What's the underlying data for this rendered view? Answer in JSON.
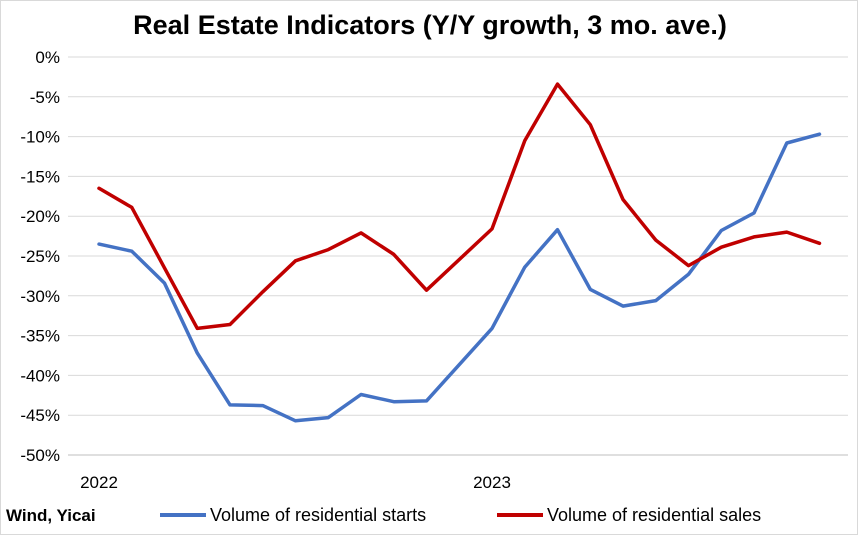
{
  "chart_data": {
    "type": "line",
    "title": "Real Estate Indicators (Y/Y growth, 3 mo. ave.)",
    "xlabel": "",
    "ylabel": "",
    "ylim": [
      -50,
      0
    ],
    "y_ticks": [
      "0%",
      "-5%",
      "-10%",
      "-15%",
      "-20%",
      "-25%",
      "-30%",
      "-35%",
      "-40%",
      "-45%",
      "-50%"
    ],
    "x_tick_labels": [
      {
        "label": "2022",
        "index": 0
      },
      {
        "label": "2023",
        "index": 12
      }
    ],
    "grid": true,
    "legend_position": "bottom",
    "x": [
      "2022-01",
      "2022-02",
      "2022-03",
      "2022-04",
      "2022-05",
      "2022-06",
      "2022-07",
      "2022-08",
      "2022-09",
      "2022-10",
      "2022-11",
      "2022-12",
      "2023-01",
      "2023-02",
      "2023-03",
      "2023-04",
      "2023-05",
      "2023-06",
      "2023-07",
      "2023-08",
      "2023-09",
      "2023-10",
      "2023-11"
    ],
    "series": [
      {
        "name": "Volume of residential starts",
        "color": "#4472c4",
        "values": [
          -23.5,
          -24.4,
          -28.4,
          -37.2,
          -43.7,
          -43.8,
          -45.7,
          -45.3,
          -42.4,
          -43.3,
          -43.2,
          null,
          -34.1,
          -26.4,
          -21.7,
          -29.2,
          -31.3,
          -30.6,
          -27.3,
          -21.8,
          -19.6,
          -10.8,
          -9.7
        ]
      },
      {
        "name": "Volume of residential sales",
        "color": "#c00000",
        "values": [
          -16.5,
          -18.9,
          -26.5,
          -34.1,
          -33.6,
          -29.5,
          -25.6,
          -24.2,
          -22.1,
          -24.8,
          -29.3,
          null,
          -21.6,
          -10.5,
          -3.4,
          -8.5,
          -17.9,
          -23.0,
          -26.2,
          -23.9,
          -22.6,
          -22.0,
          -23.4
        ]
      }
    ]
  },
  "source_note": "Wind, Yicai"
}
